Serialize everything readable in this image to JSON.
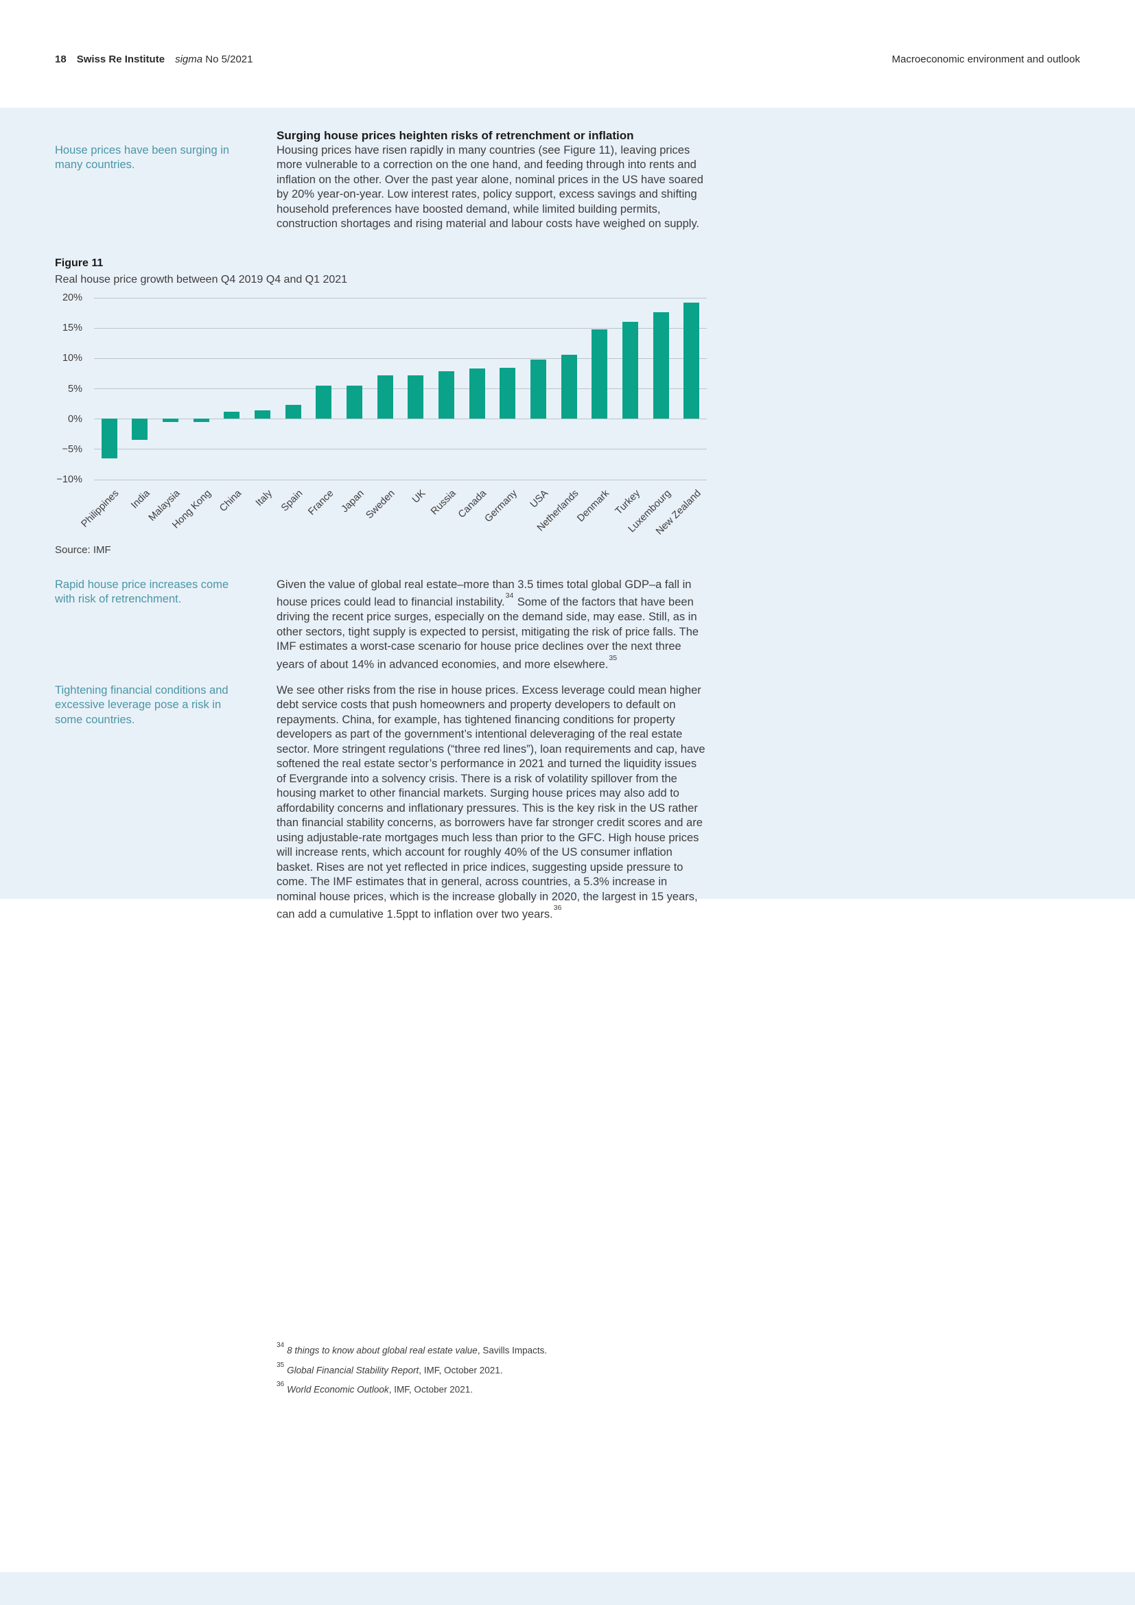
{
  "page_header": {
    "page_number": "18",
    "brand": "Swiss Re Institute",
    "journal": "sigma",
    "issue": "No 5/2021",
    "section": "Macroeconomic environment and outlook"
  },
  "intro": {
    "margin_note": "House prices have been surging in many countries.",
    "heading": "Surging house prices heighten risks of retrenchment or inflation",
    "body": "Housing prices have risen rapidly in many countries (see Figure 11), leaving prices more vulnerable to a correction on the one hand, and feeding through into rents and inflation on the other. Over the past year alone, nominal prices in the US have soared by 20% year-on-year. Low interest rates, policy support, excess savings and shifting household preferences have boosted demand, while limited building permits, construction shortages and rising material and labour costs have weighed on supply."
  },
  "figure": {
    "label": "Figure 11",
    "subtitle": "Real house price growth between Q4 2019 Q4 and Q1 2021",
    "source": "Source: IMF"
  },
  "chart_data": {
    "type": "bar",
    "title": "Real house price growth between Q4 2019 Q4 and Q1 2021",
    "categories": [
      "Philippines",
      "India",
      "Malaysia",
      "Hong Kong",
      "China",
      "Italy",
      "Spain",
      "France",
      "Japan",
      "Sweden",
      "UK",
      "Russia",
      "Canada",
      "Germany",
      "USA",
      "Netherlands",
      "Denmark",
      "Turkey",
      "Luxembourg",
      "New Zealand"
    ],
    "values": [
      -6.5,
      -3.5,
      -0.6,
      -0.5,
      1.2,
      1.4,
      2.3,
      5.4,
      5.5,
      7.2,
      7.2,
      7.8,
      8.3,
      8.4,
      9.7,
      10.6,
      14.7,
      16.0,
      17.6,
      19.2
    ],
    "ylim": [
      -10,
      20
    ],
    "ytick_step": 5,
    "ytick_labels": [
      "20%",
      "15%",
      "10%",
      "5%",
      "0%",
      "−5%",
      "−10%"
    ],
    "grid": true,
    "legend": "none",
    "bar_color": "#0aa38a",
    "xlabel": "",
    "ylabel": "",
    "source": "Source: IMF"
  },
  "section2": {
    "margin_note": "Rapid house price increases come with risk of retrenchment.",
    "body_a": "Given the value of global real estate–more than 3.5 times total global GDP–a fall in house prices could lead to financial instability.",
    "sup_a": "34",
    "body_b": " Some of the factors that have been driving the recent price surges, especially on the demand side, may ease. Still, as in other sectors, tight supply is expected to persist, mitigating the risk of price falls. The IMF estimates a worst-case scenario for house price declines over the next three years of about 14% in advanced economies, and more elsewhere.",
    "sup_b": "35"
  },
  "section3": {
    "margin_note": "Tightening financial conditions and excessive leverage pose a risk in some countries.",
    "body": "We see other risks from the rise in house prices. Excess leverage could mean higher debt service costs that push homeowners and property developers to default on repayments. China, for example, has tightened financing conditions for property developers as part of the government’s intentional deleveraging of the real estate sector. More stringent regulations (“three red lines”), loan requirements and cap, have softened the real estate sector’s performance in 2021 and turned the liquidity issues of Evergrande into a solvency crisis. There is a risk of volatility spillover from the housing market to other financial markets. Surging house prices may also add to affordability concerns and inflationary pressures. This is the key risk in the US rather than financial stability concerns, as borrowers have far stronger credit scores and are using adjustable-rate mortgages much less than prior to the GFC. High house prices will increase rents, which account for roughly 40% of the US consumer inflation basket. Rises are not yet reflected in price indices, suggesting upside pressure to come. The IMF estimates that in general, across countries, a 5.3% increase in nominal house prices, which is the increase globally in 2020, the largest in 15 years, can add a cumulative 1.5ppt to inflation over two years.",
    "sup": "36"
  },
  "footnotes": [
    {
      "num": "34",
      "italic": "8 things to know about global real estate value",
      "rest": ", Savills Impacts."
    },
    {
      "num": "35",
      "italic": "Global Financial Stability Report",
      "rest": ", IMF, October 2021."
    },
    {
      "num": "36",
      "italic": "World Economic Outlook",
      "rest": ", IMF, October 2021."
    }
  ],
  "colors": {
    "band_background": "#e9f1f8",
    "margin_note_teal": "#4a96a6",
    "bar_green": "#0aa38a",
    "gridline_gray": "#bac3cb",
    "body_text": "#3d3d3d"
  }
}
